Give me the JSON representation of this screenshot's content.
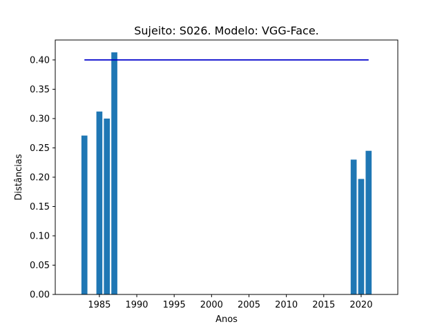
{
  "chart_data": {
    "type": "bar",
    "title": "Sujeito: S026. Modelo: VGG-Face.",
    "xlabel": "Anos",
    "ylabel": "Distâncias",
    "x": [
      1983,
      1985,
      1986,
      1987,
      2019,
      2020,
      2021
    ],
    "values": [
      0.271,
      0.312,
      0.3,
      0.413,
      0.23,
      0.197,
      0.245
    ],
    "bar_width_years": 0.8,
    "xlim": [
      1979.1,
      2024.9
    ],
    "ylim": [
      0,
      0.434
    ],
    "xticks": [
      1985,
      1990,
      1995,
      2000,
      2005,
      2010,
      2015,
      2020
    ],
    "yticks": [
      0.0,
      0.05,
      0.1,
      0.15,
      0.2,
      0.25,
      0.3,
      0.35,
      0.4
    ],
    "threshold_line": {
      "y": 0.4,
      "x_start": 1983,
      "x_end": 2021
    },
    "grid": false,
    "legend": "none",
    "colors": {
      "bar": "#1f77b4",
      "threshold": "#0000cc"
    }
  }
}
